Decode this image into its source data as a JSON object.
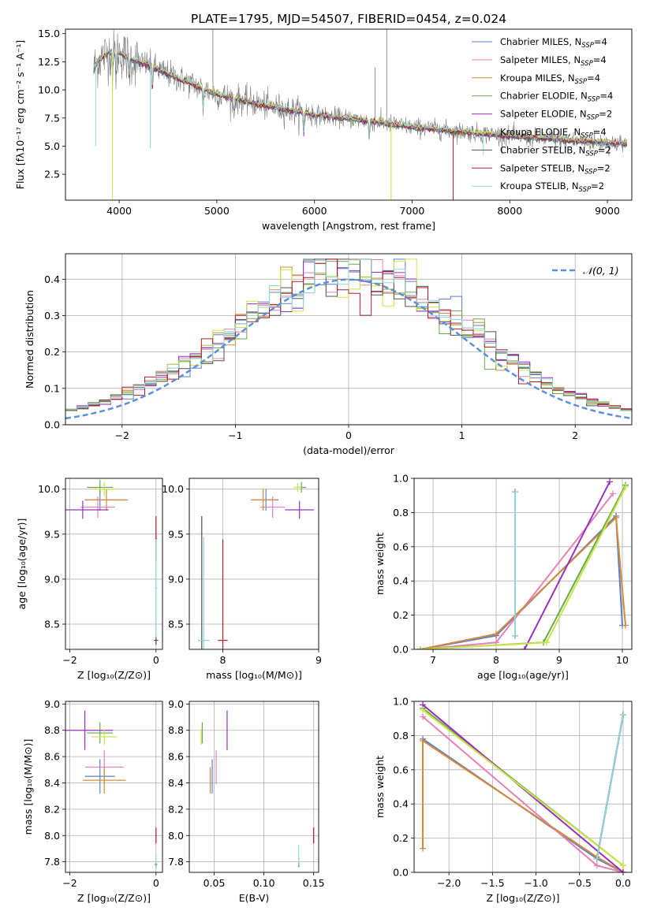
{
  "figure": {
    "title": "PLATE=1795, MJD=54507, FIBERID=0454, z=0.024"
  },
  "colors": {
    "Chabrier MILES": "#5b7fd0",
    "Salpeter MILES": "#e87fb8",
    "Kroupa MILES": "#d48a3a",
    "Chabrier ELODIE": "#6aa84f",
    "Salpeter ELODIE": "#9a30c0",
    "Kroupa ELODIE": "#c8e645",
    "Chabrier STELIB": "#505050",
    "Salpeter STELIB": "#b01e2a",
    "Kroupa STELIB": "#8ed6d8",
    "data": "#808080",
    "normal": "#5b8fd8"
  },
  "chart_data": [
    {
      "id": "spectrum",
      "type": "line",
      "title": "PLATE=1795, MJD=54507, FIBERID=0454, z=0.024",
      "xlabel": "wavelength [Angstrom, rest frame]",
      "ylabel": "Flux [fλ10⁻¹⁷ erg cm⁻² s⁻¹ A⁻¹]",
      "xlim": [
        3450,
        9250
      ],
      "ylim": [
        0.2,
        15.4
      ],
      "xticks": [
        4000,
        5000,
        6000,
        7000,
        8000,
        9000
      ],
      "yticks": [
        2.5,
        5.0,
        7.5,
        10.0,
        12.5,
        15.0
      ],
      "ytick_labels": [
        "2.5",
        "5.0",
        "7.5",
        "10.0",
        "12.5",
        "15.0"
      ],
      "legend_position": "top-right",
      "continuum": {
        "x": [
          3750,
          3800,
          3900,
          4000,
          4100,
          4300,
          4500,
          5000,
          5500,
          6000,
          6500,
          7000,
          7500,
          8000,
          8500,
          9000,
          9200
        ],
        "y": [
          12.0,
          12.8,
          13.3,
          13.3,
          12.8,
          12.2,
          11.4,
          9.6,
          8.6,
          7.8,
          7.3,
          6.7,
          6.3,
          5.9,
          5.6,
          5.3,
          5.2
        ]
      },
      "series": [
        {
          "name": "Chabrier MILES, N$_{SSP}$=4",
          "legend": "Chabrier MILES, N",
          "sub": "SSP",
          "suffix": "=4"
        },
        {
          "name": "Salpeter MILES, N$_{SSP}$=4",
          "legend": "Salpeter MILES, N",
          "sub": "SSP",
          "suffix": "=4"
        },
        {
          "name": "Kroupa MILES, N$_{SSP}$=4",
          "legend": "Kroupa MILES, N",
          "sub": "SSP",
          "suffix": "=4"
        },
        {
          "name": "Chabrier ELODIE, N$_{SSP}$=4",
          "legend": "Chabrier ELODIE, N",
          "sub": "SSP",
          "suffix": "=4"
        },
        {
          "name": "Salpeter ELODIE, N$_{SSP}$=2",
          "legend": "Salpeter ELODIE, N",
          "sub": "SSP",
          "suffix": "=2"
        },
        {
          "name": "Kroupa ELODIE, N$_{SSP}$=4",
          "legend": "Kroupa ELODIE, N",
          "sub": "SSP",
          "suffix": "=4"
        },
        {
          "name": "Chabrier STELIB, N$_{SSP}$=2",
          "legend": "Chabrier STELIB, N",
          "sub": "SSP",
          "suffix": "=2"
        },
        {
          "name": "Salpeter STELIB, N$_{SSP}$=2",
          "legend": "Salpeter STELIB, N",
          "sub": "SSP",
          "suffix": "=2"
        },
        {
          "name": "Kroupa STELIB, N$_{SSP}$=2",
          "legend": "Kroupa STELIB, N",
          "sub": "SSP",
          "suffix": "=2"
        }
      ]
    },
    {
      "id": "residuals",
      "type": "line",
      "xlabel": "(data-model)/error",
      "ylabel": "Normed distribution",
      "xlim": [
        -2.5,
        2.5
      ],
      "ylim": [
        0.0,
        0.47
      ],
      "xticks": [
        -2,
        -1,
        0,
        1,
        2
      ],
      "xtick_labels": [
        "−2",
        "−1",
        "0",
        "1",
        "2"
      ],
      "yticks": [
        0.0,
        0.1,
        0.2,
        0.3,
        0.4
      ],
      "ytick_labels": [
        "0.0",
        "0.1",
        "0.2",
        "0.3",
        "0.4"
      ],
      "legend_label": "𝒩(0, 1)",
      "legend_position": "top-right",
      "grid": true
    },
    {
      "id": "age-vs-Z",
      "type": "scatter",
      "xlabel": "Z [log₁₀(Z/Z⊙)]",
      "ylabel": "age  [log₁₀(age/yr)]",
      "xlim": [
        -2.1,
        0.15
      ],
      "ylim": [
        8.22,
        10.12
      ],
      "xticks": [
        -2,
        0
      ],
      "xtick_labels": [
        "−2",
        "0"
      ],
      "yticks": [
        8.5,
        9.0,
        9.5,
        10.0
      ],
      "ytick_labels": [
        "8.5",
        "9.0",
        "9.5",
        "10.0"
      ],
      "grid": true,
      "points": [
        {
          "series": "Chabrier MILES",
          "x": -1.3,
          "y": 9.88,
          "xerr": 0.35,
          "yerr": 0.12
        },
        {
          "series": "Salpeter MILES",
          "x": -1.35,
          "y": 9.8,
          "xerr": 0.4,
          "yerr": 0.12
        },
        {
          "series": "Kroupa MILES",
          "x": -1.15,
          "y": 9.88,
          "xerr": 0.5,
          "yerr": 0.12
        },
        {
          "series": "Chabrier ELODIE",
          "x": -1.3,
          "y": 10.02,
          "xerr": 0.3,
          "yerr": 0.08
        },
        {
          "series": "Salpeter ELODIE",
          "x": -1.7,
          "y": 9.77,
          "xerr": 0.6,
          "yerr": 0.1
        },
        {
          "series": "Kroupa ELODIE",
          "x": -1.2,
          "y": 10.0,
          "xerr": 0.3,
          "yerr": 0.08
        },
        {
          "series": "Chabrier STELIB",
          "x": 0.0,
          "y": 8.32,
          "xerr": 0.05,
          "yerr": 0.05
        },
        {
          "series": "Salpeter STELIB",
          "x": 0.0,
          "y": 9.45,
          "xerr": 0.02,
          "yerr": 0.25
        },
        {
          "series": "Kroupa STELIB",
          "x": 0.0,
          "y": 8.9,
          "xerr": 0.02,
          "yerr": 0.55
        }
      ]
    },
    {
      "id": "age-vs-mass",
      "type": "scatter",
      "xlabel": "mass [log₁₀(M/M⊙)]",
      "xlim": [
        7.65,
        9.0
      ],
      "ylim": [
        8.22,
        10.12
      ],
      "xticks": [
        8,
        9
      ],
      "xtick_labels": [
        "8",
        "9"
      ],
      "yticks": [
        8.5,
        9.0,
        9.5,
        10.0
      ],
      "ytick_labels": [
        "8.5",
        "9.0",
        "9.5",
        "10.0"
      ],
      "grid": true,
      "points": [
        {
          "series": "Chabrier MILES",
          "x": 8.45,
          "y": 9.88,
          "xerr": 0.13,
          "yerr": 0.12
        },
        {
          "series": "Salpeter MILES",
          "x": 8.52,
          "y": 9.8,
          "xerr": 0.13,
          "yerr": 0.12
        },
        {
          "series": "Kroupa MILES",
          "x": 8.42,
          "y": 9.88,
          "xerr": 0.13,
          "yerr": 0.12
        },
        {
          "series": "Chabrier ELODIE",
          "x": 8.82,
          "y": 10.02,
          "xerr": 0.05,
          "yerr": 0.06
        },
        {
          "series": "Salpeter ELODIE",
          "x": 8.8,
          "y": 9.77,
          "xerr": 0.15,
          "yerr": 0.1
        },
        {
          "series": "Kroupa ELODIE",
          "x": 8.78,
          "y": 10.02,
          "xerr": 0.04,
          "yerr": 0.05
        },
        {
          "series": "Chabrier STELIB",
          "x": 7.78,
          "y": 8.32,
          "xerr": 0.02,
          "yerr": 1.38
        },
        {
          "series": "Salpeter STELIB",
          "x": 8.0,
          "y": 8.32,
          "xerr": 0.05,
          "yerr": 1.12
        },
        {
          "series": "Kroupa STELIB",
          "x": 7.8,
          "y": 8.32,
          "xerr": 0.06,
          "yerr": 1.15
        }
      ]
    },
    {
      "id": "massweight-vs-age",
      "type": "line",
      "xlabel": "age  [log₁₀(age/yr)]",
      "ylabel": "mass weight",
      "xlim": [
        6.7,
        10.15
      ],
      "ylim": [
        0.0,
        1.0
      ],
      "xticks": [
        7,
        8,
        9,
        10
      ],
      "xtick_labels": [
        "7",
        "8",
        "9",
        "10"
      ],
      "yticks": [
        0.0,
        0.2,
        0.4,
        0.6,
        0.8,
        1.0
      ],
      "ytick_labels": [
        "0.0",
        "0.2",
        "0.4",
        "0.6",
        "0.8",
        "1.0"
      ],
      "grid": true,
      "series": [
        {
          "name": "Chabrier MILES",
          "x": [
            6.8,
            8.0,
            9.9,
            10.0
          ],
          "y": [
            0.0,
            0.08,
            0.78,
            0.14
          ]
        },
        {
          "name": "Salpeter MILES",
          "x": [
            6.8,
            8.0,
            9.85
          ],
          "y": [
            0.0,
            0.04,
            0.91
          ]
        },
        {
          "name": "Kroupa MILES",
          "x": [
            6.8,
            8.0,
            9.9,
            10.05
          ],
          "y": [
            0.0,
            0.09,
            0.77,
            0.14
          ]
        },
        {
          "name": "Chabrier ELODIE",
          "x": [
            6.8,
            8.75,
            10.05
          ],
          "y": [
            0.0,
            0.04,
            0.96
          ]
        },
        {
          "name": "Salpeter ELODIE",
          "x": [
            8.45,
            9.8
          ],
          "y": [
            0.0,
            0.98
          ]
        },
        {
          "name": "Kroupa ELODIE",
          "x": [
            6.8,
            8.8,
            10.05
          ],
          "y": [
            0.0,
            0.04,
            0.95
          ]
        },
        {
          "name": "Chabrier STELIB",
          "x": [
            8.3,
            8.3
          ],
          "y": [
            0.08,
            0.92
          ]
        },
        {
          "name": "Salpeter STELIB",
          "x": [
            8.3,
            8.3
          ],
          "y": [
            0.08,
            0.92
          ]
        },
        {
          "name": "Kroupa STELIB",
          "x": [
            8.3,
            8.3
          ],
          "y": [
            0.08,
            0.92
          ]
        }
      ]
    },
    {
      "id": "mass-vs-Z",
      "type": "scatter",
      "xlabel": "Z [log₁₀(Z/Z⊙)]",
      "ylabel": "mass [log₁₀(M/M⊙)]",
      "xlim": [
        -2.1,
        0.15
      ],
      "ylim": [
        7.72,
        9.02
      ],
      "xticks": [
        -2,
        0
      ],
      "xtick_labels": [
        "−2",
        "0"
      ],
      "yticks": [
        7.8,
        8.0,
        8.2,
        8.4,
        8.6,
        8.8,
        9.0
      ],
      "ytick_labels": [
        "7.8",
        "8.0",
        "8.2",
        "8.4",
        "8.6",
        "8.8",
        "9.0"
      ],
      "grid": true,
      "points": [
        {
          "series": "Chabrier MILES",
          "x": -1.3,
          "y": 8.45,
          "xerr": 0.35,
          "yerr": 0.13
        },
        {
          "series": "Salpeter MILES",
          "x": -1.2,
          "y": 8.52,
          "xerr": 0.45,
          "yerr": 0.13
        },
        {
          "series": "Kroupa MILES",
          "x": -1.2,
          "y": 8.42,
          "xerr": 0.5,
          "yerr": 0.1
        },
        {
          "series": "Chabrier ELODIE",
          "x": -1.3,
          "y": 8.78,
          "xerr": 0.3,
          "yerr": 0.08
        },
        {
          "series": "Salpeter ELODIE",
          "x": -1.65,
          "y": 8.8,
          "xerr": 0.65,
          "yerr": 0.15
        },
        {
          "series": "Kroupa ELODIE",
          "x": -1.2,
          "y": 8.75,
          "xerr": 0.3,
          "yerr": 0.06
        },
        {
          "series": "Chabrier STELIB",
          "x": 0.0,
          "y": 7.78,
          "xerr": 0.03,
          "yerr": 0.02
        },
        {
          "series": "Salpeter STELIB",
          "x": 0.0,
          "y": 8.0,
          "xerr": 0.01,
          "yerr": 0.06
        },
        {
          "series": "Kroupa STELIB",
          "x": 0.0,
          "y": 7.8,
          "xerr": 0.01,
          "yerr": 0.06
        }
      ]
    },
    {
      "id": "mass-vs-EBV",
      "type": "scatter",
      "xlabel": "E(B-V)",
      "xlim": [
        0.025,
        0.155
      ],
      "ylim": [
        7.72,
        9.02
      ],
      "xticks": [
        0.05,
        0.1,
        0.15
      ],
      "xtick_labels": [
        "0.05",
        "0.10",
        "0.15"
      ],
      "yticks": [
        7.8,
        8.0,
        8.2,
        8.4,
        8.6,
        8.8,
        9.0
      ],
      "ytick_labels": [
        "7.8",
        "8.0",
        "8.2",
        "8.4",
        "8.6",
        "8.8",
        "9.0"
      ],
      "grid": true,
      "points": [
        {
          "series": "Chabrier MILES",
          "x": 0.048,
          "y": 8.45,
          "xerr": 0.0,
          "yerr": 0.13
        },
        {
          "series": "Salpeter MILES",
          "x": 0.052,
          "y": 8.52,
          "xerr": 0.0,
          "yerr": 0.13
        },
        {
          "series": "Kroupa MILES",
          "x": 0.046,
          "y": 8.42,
          "xerr": 0.0,
          "yerr": 0.1
        },
        {
          "series": "Chabrier ELODIE",
          "x": 0.038,
          "y": 8.78,
          "xerr": 0.0,
          "yerr": 0.08
        },
        {
          "series": "Salpeter ELODIE",
          "x": 0.063,
          "y": 8.8,
          "xerr": 0.0,
          "yerr": 0.15
        },
        {
          "series": "Kroupa ELODIE",
          "x": 0.037,
          "y": 8.75,
          "xerr": 0.0,
          "yerr": 0.06
        },
        {
          "series": "Chabrier STELIB",
          "x": 0.135,
          "y": 7.78,
          "xerr": 0.0,
          "yerr": 0.02
        },
        {
          "series": "Salpeter STELIB",
          "x": 0.15,
          "y": 8.0,
          "xerr": 0.0,
          "yerr": 0.06
        },
        {
          "series": "Kroupa STELIB",
          "x": 0.135,
          "y": 7.85,
          "xerr": 0.0,
          "yerr": 0.08
        }
      ]
    },
    {
      "id": "massweight-vs-Z",
      "type": "line",
      "xlabel": "Z [log₁₀(Z/Z⊙)]",
      "ylabel": "mass weight",
      "xlim": [
        -2.4,
        0.1
      ],
      "ylim": [
        0.0,
        1.0
      ],
      "xticks": [
        -2.0,
        -1.5,
        -1.0,
        -0.5,
        0.0
      ],
      "xtick_labels": [
        "−2.0",
        "−1.5",
        "−1.0",
        "−0.5",
        "0.0"
      ],
      "yticks": [
        0.0,
        0.2,
        0.4,
        0.6,
        0.8,
        1.0
      ],
      "ytick_labels": [
        "0.0",
        "0.2",
        "0.4",
        "0.6",
        "0.8",
        "1.0"
      ],
      "grid": true,
      "series": [
        {
          "name": "Chabrier MILES",
          "x": [
            -2.3,
            -0.3,
            0.0
          ],
          "y": [
            0.78,
            0.08,
            0.0
          ]
        },
        {
          "name": "Salpeter MILES",
          "x": [
            -2.3,
            -0.3,
            0.0
          ],
          "y": [
            0.91,
            0.04,
            0.0
          ]
        },
        {
          "name": "Kroupa MILES",
          "x": [
            -2.3,
            -2.3,
            -0.3,
            0.0
          ],
          "y": [
            0.14,
            0.77,
            0.09,
            0.0
          ]
        },
        {
          "name": "Chabrier ELODIE",
          "x": [
            -2.3,
            0.0
          ],
          "y": [
            0.96,
            0.04
          ]
        },
        {
          "name": "Salpeter ELODIE",
          "x": [
            -2.3,
            0.0
          ],
          "y": [
            0.98,
            0.0
          ]
        },
        {
          "name": "Kroupa ELODIE",
          "x": [
            -2.3,
            0.0
          ],
          "y": [
            0.95,
            0.04
          ]
        },
        {
          "name": "Chabrier STELIB",
          "x": [
            -0.3,
            0.0
          ],
          "y": [
            0.08,
            0.92
          ]
        },
        {
          "name": "Salpeter STELIB",
          "x": [
            -0.3,
            0.0
          ],
          "y": [
            0.08,
            0.92
          ]
        },
        {
          "name": "Kroupa STELIB",
          "x": [
            -0.3,
            0.0
          ],
          "y": [
            0.08,
            0.92
          ]
        }
      ]
    }
  ]
}
